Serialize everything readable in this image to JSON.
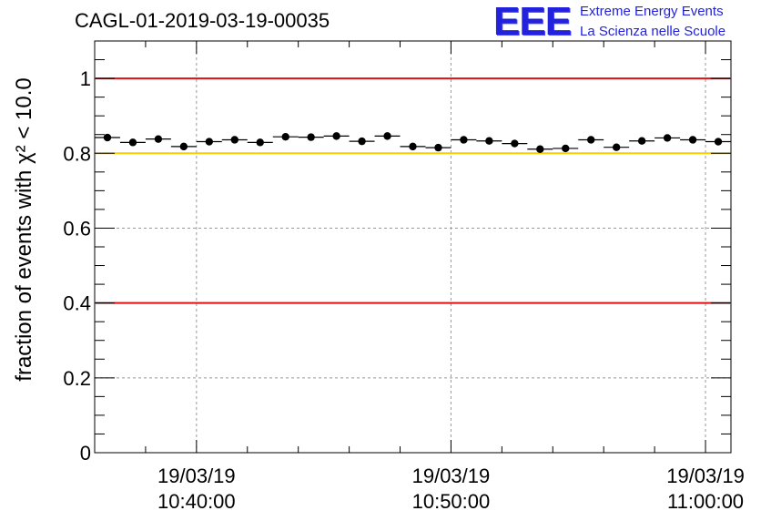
{
  "header": {
    "run_title": "CAGL-01-2019-03-19-00035"
  },
  "logo": {
    "letters": "EEE",
    "line1": "Extreme Energy Events",
    "line2": "La Scienza nelle Scuole",
    "color": "#2222dd"
  },
  "chart_data": {
    "type": "scatter",
    "ylabel": "fraction of events with χ² < 10.0",
    "xlim": [
      "2019-03-19 10:36:00",
      "2019-03-19 11:01:00"
    ],
    "ylim": [
      0,
      1.1
    ],
    "y_ticks": [
      0,
      0.2,
      0.4,
      0.6,
      0.8,
      1
    ],
    "y_tick_labels": [
      "0",
      "0.2",
      "0.4",
      "0.6",
      "0.8",
      "1"
    ],
    "x_ticks": [
      "2019-03-19 10:40:00",
      "2019-03-19 10:50:00",
      "2019-03-19 11:00:00"
    ],
    "x_tick_labels": [
      {
        "date": "19/03/19",
        "time": "10:40:00"
      },
      {
        "date": "19/03/19",
        "time": "10:50:00"
      },
      {
        "date": "19/03/19",
        "time": "11:00:00"
      }
    ],
    "grid": true,
    "bin_width_seconds": 60,
    "x": [
      "2019-03-19 10:36:30",
      "2019-03-19 10:37:30",
      "2019-03-19 10:38:30",
      "2019-03-19 10:39:30",
      "2019-03-19 10:40:30",
      "2019-03-19 10:41:30",
      "2019-03-19 10:42:30",
      "2019-03-19 10:43:30",
      "2019-03-19 10:44:30",
      "2019-03-19 10:45:30",
      "2019-03-19 10:46:30",
      "2019-03-19 10:47:30",
      "2019-03-19 10:48:30",
      "2019-03-19 10:49:30",
      "2019-03-19 10:50:30",
      "2019-03-19 10:51:30",
      "2019-03-19 10:52:30",
      "2019-03-19 10:53:30",
      "2019-03-19 10:54:30",
      "2019-03-19 10:55:30",
      "2019-03-19 10:56:30",
      "2019-03-19 10:57:30",
      "2019-03-19 10:58:30",
      "2019-03-19 10:59:30",
      "2019-03-19 11:00:30"
    ],
    "y": [
      0.842,
      0.829,
      0.838,
      0.818,
      0.831,
      0.836,
      0.829,
      0.844,
      0.843,
      0.846,
      0.832,
      0.846,
      0.818,
      0.815,
      0.836,
      0.833,
      0.826,
      0.811,
      0.813,
      0.836,
      0.816,
      0.833,
      0.841,
      0.836,
      0.831
    ],
    "y_error": 0.005,
    "reference_lines": [
      {
        "y": 1.0,
        "color": "#dd1111"
      },
      {
        "y": 0.8,
        "color": "#ffcc00"
      },
      {
        "y": 0.4,
        "color": "#dd1111"
      }
    ]
  }
}
